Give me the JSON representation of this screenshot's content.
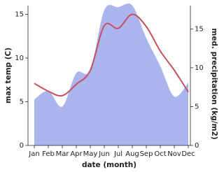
{
  "chart_data": {
    "type": "area-line",
    "x_label": "date (month)",
    "y_label": "max temp (C)",
    "y2_label": "med. precipitation (kg/m2)",
    "categories": [
      "Jan",
      "Feb",
      "Mar",
      "Apr",
      "May",
      "Jun",
      "Jul",
      "Aug",
      "Sep",
      "Oct",
      "Nov",
      "Dec"
    ],
    "series": [
      {
        "name": "med. precipitation",
        "type": "area",
        "axis": "y2",
        "color": "#aab5ee",
        "values": [
          5.9,
          7.0,
          5.0,
          9.3,
          9.7,
          17.4,
          17.8,
          18.0,
          13.8,
          10.2,
          6.3,
          8.1
        ]
      },
      {
        "name": "max temp",
        "type": "line",
        "axis": "y",
        "color": "#c8505e",
        "values": [
          7.1,
          6.2,
          5.7,
          7.0,
          8.6,
          13.7,
          13.4,
          15.0,
          13.6,
          10.8,
          8.6,
          6.1
        ]
      }
    ],
    "ylim": [
      0,
      16
    ],
    "yticks": [
      0,
      5,
      10,
      15
    ],
    "y2lim": [
      0,
      18
    ],
    "y2ticks": [
      0,
      5,
      10,
      15
    ]
  }
}
